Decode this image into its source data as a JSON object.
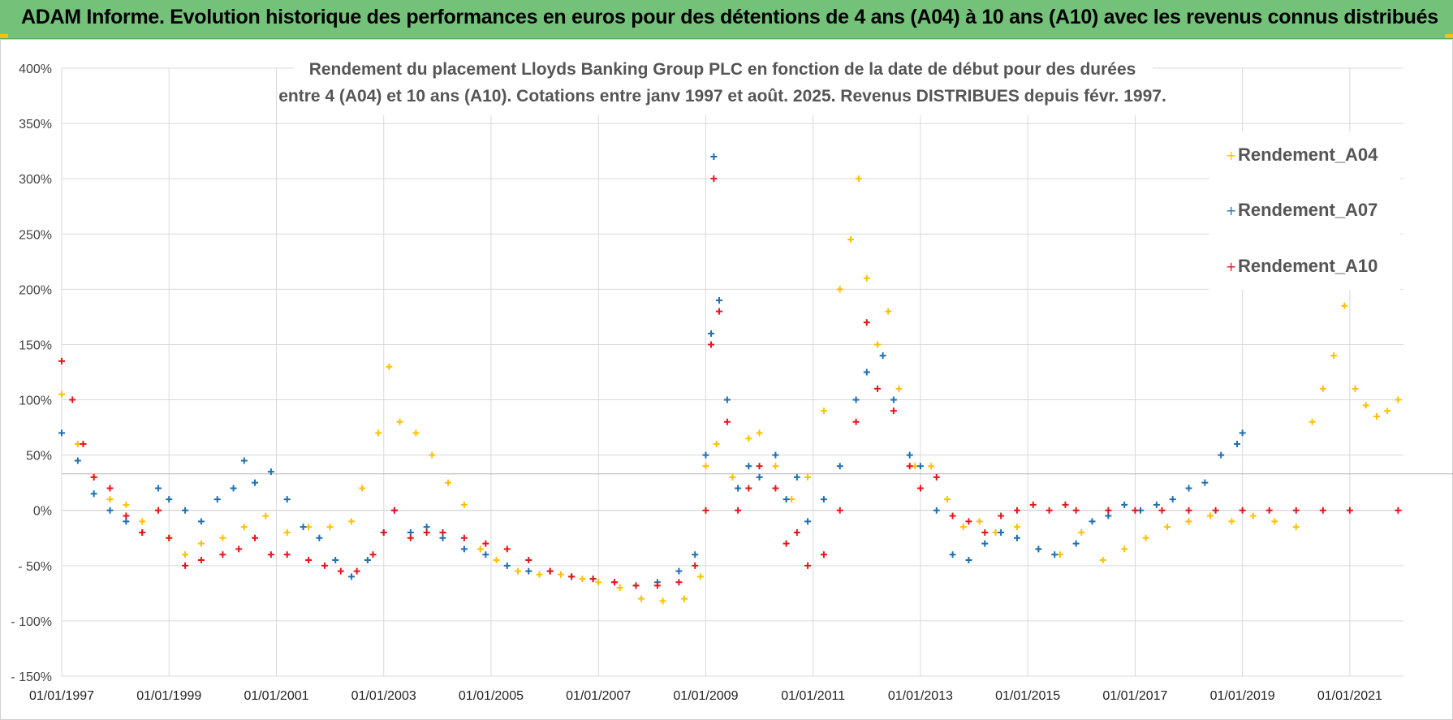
{
  "header": {
    "title": "ADAM Informe. Evolution historique des performances en euros pour des détentions de 4 ans (A04) à 10 ans (A10) avec les revenus connus distribués"
  },
  "colors": {
    "banner": "#74c27a",
    "A04": "#ffc000",
    "A07": "#1f6fb2",
    "A10": "#e8141b",
    "grid": "#d9d9d9"
  },
  "chart_data": {
    "type": "scatter",
    "title_lines": [
      "Rendement du placement Lloyds Banking Group PLC en fonction de la date de début pour des durées",
      "entre 4 (A04) et 10 ans (A10). Cotations entre janv 1997 et août. 2025. Revenus DISTRIBUES depuis févr. 1997."
    ],
    "xlabel": "",
    "ylabel": "",
    "x_range": [
      "1997-01-01",
      "2022-01-01"
    ],
    "ylim": [
      -150,
      400
    ],
    "y_ticks": [
      400,
      350,
      300,
      250,
      200,
      150,
      100,
      50,
      0,
      -50,
      -100,
      -150
    ],
    "y_tick_labels": [
      "400%",
      "350%",
      "300%",
      "250%",
      "200%",
      "150%",
      "100%",
      "50%",
      "0%",
      "- 50%",
      "- 100%",
      "- 150%"
    ],
    "x_tick_labels": [
      "01/01/1997",
      "01/01/1999",
      "01/01/2001",
      "01/01/2003",
      "01/01/2005",
      "01/01/2007",
      "01/01/2009",
      "01/01/2011",
      "01/01/2013",
      "01/01/2015",
      "01/01/2017",
      "01/01/2019",
      "01/01/2021"
    ],
    "x_tick_years": [
      1997,
      1999,
      2001,
      2003,
      2005,
      2007,
      2009,
      2011,
      2013,
      2015,
      2017,
      2019,
      2021
    ],
    "legend_position": "top-right",
    "grid": true,
    "marker": "+",
    "series": [
      {
        "name": "Rendement_A04",
        "color": "#ffc000",
        "points": [
          [
            1997.0,
            105
          ],
          [
            1997.3,
            60
          ],
          [
            1997.6,
            30
          ],
          [
            1997.9,
            10
          ],
          [
            1998.2,
            5
          ],
          [
            1998.5,
            -10
          ],
          [
            1998.8,
            0
          ],
          [
            1999.0,
            -25
          ],
          [
            1999.3,
            -40
          ],
          [
            1999.6,
            -30
          ],
          [
            2000.0,
            -25
          ],
          [
            2000.4,
            -15
          ],
          [
            2000.8,
            -5
          ],
          [
            2001.2,
            -20
          ],
          [
            2001.6,
            -15
          ],
          [
            2002.0,
            -15
          ],
          [
            2002.4,
            -10
          ],
          [
            2002.6,
            20
          ],
          [
            2002.9,
            70
          ],
          [
            2003.1,
            130
          ],
          [
            2003.3,
            80
          ],
          [
            2003.6,
            70
          ],
          [
            2003.9,
            50
          ],
          [
            2004.2,
            25
          ],
          [
            2004.5,
            5
          ],
          [
            2004.8,
            -35
          ],
          [
            2005.1,
            -45
          ],
          [
            2005.5,
            -55
          ],
          [
            2005.9,
            -58
          ],
          [
            2006.3,
            -58
          ],
          [
            2006.7,
            -62
          ],
          [
            2007.0,
            -65
          ],
          [
            2007.4,
            -70
          ],
          [
            2007.8,
            -80
          ],
          [
            2008.2,
            -82
          ],
          [
            2008.6,
            -80
          ],
          [
            2008.9,
            -60
          ],
          [
            2009.0,
            40
          ],
          [
            2009.2,
            60
          ],
          [
            2009.5,
            30
          ],
          [
            2009.8,
            65
          ],
          [
            2010.0,
            70
          ],
          [
            2010.3,
            40
          ],
          [
            2010.6,
            10
          ],
          [
            2010.9,
            30
          ],
          [
            2011.2,
            90
          ],
          [
            2011.5,
            200
          ],
          [
            2011.7,
            245
          ],
          [
            2011.85,
            300
          ],
          [
            2012.0,
            210
          ],
          [
            2012.2,
            150
          ],
          [
            2012.4,
            180
          ],
          [
            2012.6,
            110
          ],
          [
            2012.9,
            40
          ],
          [
            2013.2,
            40
          ],
          [
            2013.5,
            10
          ],
          [
            2013.8,
            -15
          ],
          [
            2014.1,
            -10
          ],
          [
            2014.4,
            -20
          ],
          [
            2014.8,
            -15
          ],
          [
            2015.2,
            -35
          ],
          [
            2015.6,
            -40
          ],
          [
            2016.0,
            -20
          ],
          [
            2016.4,
            -45
          ],
          [
            2016.8,
            -35
          ],
          [
            2017.2,
            -25
          ],
          [
            2017.6,
            -15
          ],
          [
            2018.0,
            -10
          ],
          [
            2018.4,
            -5
          ],
          [
            2018.8,
            -10
          ],
          [
            2019.2,
            -5
          ],
          [
            2019.6,
            -10
          ],
          [
            2020.0,
            -15
          ],
          [
            2020.3,
            80
          ],
          [
            2020.5,
            110
          ],
          [
            2020.7,
            140
          ],
          [
            2020.9,
            185
          ],
          [
            2021.1,
            110
          ],
          [
            2021.3,
            95
          ],
          [
            2021.5,
            85
          ],
          [
            2021.7,
            90
          ],
          [
            2021.9,
            100
          ]
        ]
      },
      {
        "name": "Rendement_A07",
        "color": "#1f6fb2",
        "points": [
          [
            1997.0,
            70
          ],
          [
            1997.3,
            45
          ],
          [
            1997.6,
            15
          ],
          [
            1997.9,
            0
          ],
          [
            1998.2,
            -10
          ],
          [
            1998.5,
            -20
          ],
          [
            1998.8,
            20
          ],
          [
            1999.0,
            10
          ],
          [
            1999.3,
            0
          ],
          [
            1999.6,
            -10
          ],
          [
            1999.9,
            10
          ],
          [
            2000.2,
            20
          ],
          [
            2000.4,
            45
          ],
          [
            2000.6,
            25
          ],
          [
            2000.9,
            35
          ],
          [
            2001.2,
            10
          ],
          [
            2001.5,
            -15
          ],
          [
            2001.8,
            -25
          ],
          [
            2002.1,
            -45
          ],
          [
            2002.4,
            -60
          ],
          [
            2002.7,
            -45
          ],
          [
            2003.0,
            -20
          ],
          [
            2003.2,
            0
          ],
          [
            2003.5,
            -20
          ],
          [
            2003.8,
            -15
          ],
          [
            2004.1,
            -25
          ],
          [
            2004.5,
            -35
          ],
          [
            2004.9,
            -40
          ],
          [
            2005.3,
            -50
          ],
          [
            2005.7,
            -55
          ],
          [
            2006.1,
            -55
          ],
          [
            2006.5,
            -60
          ],
          [
            2006.9,
            -62
          ],
          [
            2007.3,
            -65
          ],
          [
            2007.7,
            -68
          ],
          [
            2008.1,
            -65
          ],
          [
            2008.5,
            -55
          ],
          [
            2008.8,
            -40
          ],
          [
            2009.0,
            50
          ],
          [
            2009.1,
            160
          ],
          [
            2009.15,
            320
          ],
          [
            2009.25,
            190
          ],
          [
            2009.4,
            100
          ],
          [
            2009.6,
            20
          ],
          [
            2009.8,
            40
          ],
          [
            2010.0,
            30
          ],
          [
            2010.3,
            50
          ],
          [
            2010.5,
            10
          ],
          [
            2010.7,
            30
          ],
          [
            2010.9,
            -10
          ],
          [
            2011.2,
            10
          ],
          [
            2011.5,
            40
          ],
          [
            2011.8,
            100
          ],
          [
            2012.0,
            125
          ],
          [
            2012.3,
            140
          ],
          [
            2012.5,
            100
          ],
          [
            2012.8,
            50
          ],
          [
            2013.0,
            40
          ],
          [
            2013.3,
            0
          ],
          [
            2013.6,
            -40
          ],
          [
            2013.9,
            -45
          ],
          [
            2014.2,
            -30
          ],
          [
            2014.5,
            -20
          ],
          [
            2014.8,
            -25
          ],
          [
            2015.2,
            -35
          ],
          [
            2015.5,
            -40
          ],
          [
            2015.9,
            -30
          ],
          [
            2016.2,
            -10
          ],
          [
            2016.5,
            -5
          ],
          [
            2016.8,
            5
          ],
          [
            2017.1,
            0
          ],
          [
            2017.4,
            5
          ],
          [
            2017.7,
            10
          ],
          [
            2018.0,
            20
          ],
          [
            2018.3,
            25
          ],
          [
            2018.6,
            50
          ],
          [
            2018.9,
            60
          ],
          [
            2019.0,
            70
          ]
        ]
      },
      {
        "name": "Rendement_A10",
        "color": "#e8141b",
        "points": [
          [
            1997.0,
            135
          ],
          [
            1997.2,
            100
          ],
          [
            1997.4,
            60
          ],
          [
            1997.6,
            30
          ],
          [
            1997.9,
            20
          ],
          [
            1998.2,
            -5
          ],
          [
            1998.5,
            -20
          ],
          [
            1998.8,
            0
          ],
          [
            1999.0,
            -25
          ],
          [
            1999.3,
            -50
          ],
          [
            1999.6,
            -45
          ],
          [
            2000.0,
            -40
          ],
          [
            2000.3,
            -35
          ],
          [
            2000.6,
            -25
          ],
          [
            2000.9,
            -40
          ],
          [
            2001.2,
            -40
          ],
          [
            2001.6,
            -45
          ],
          [
            2001.9,
            -50
          ],
          [
            2002.2,
            -55
          ],
          [
            2002.5,
            -55
          ],
          [
            2002.8,
            -40
          ],
          [
            2003.0,
            -20
          ],
          [
            2003.2,
            0
          ],
          [
            2003.5,
            -25
          ],
          [
            2003.8,
            -20
          ],
          [
            2004.1,
            -20
          ],
          [
            2004.5,
            -25
          ],
          [
            2004.9,
            -30
          ],
          [
            2005.3,
            -35
          ],
          [
            2005.7,
            -45
          ],
          [
            2006.1,
            -55
          ],
          [
            2006.5,
            -60
          ],
          [
            2006.9,
            -62
          ],
          [
            2007.3,
            -65
          ],
          [
            2007.7,
            -68
          ],
          [
            2008.1,
            -68
          ],
          [
            2008.5,
            -65
          ],
          [
            2008.8,
            -50
          ],
          [
            2009.0,
            0
          ],
          [
            2009.1,
            150
          ],
          [
            2009.15,
            300
          ],
          [
            2009.25,
            180
          ],
          [
            2009.4,
            80
          ],
          [
            2009.6,
            0
          ],
          [
            2009.8,
            20
          ],
          [
            2010.0,
            40
          ],
          [
            2010.3,
            20
          ],
          [
            2010.5,
            -30
          ],
          [
            2010.7,
            -20
          ],
          [
            2010.9,
            -50
          ],
          [
            2011.2,
            -40
          ],
          [
            2011.5,
            0
          ],
          [
            2011.8,
            80
          ],
          [
            2012.0,
            170
          ],
          [
            2012.2,
            110
          ],
          [
            2012.5,
            90
          ],
          [
            2012.8,
            40
          ],
          [
            2013.0,
            20
          ],
          [
            2013.3,
            30
          ],
          [
            2013.6,
            -5
          ],
          [
            2013.9,
            -10
          ],
          [
            2014.2,
            -20
          ],
          [
            2014.5,
            -5
          ],
          [
            2014.8,
            0
          ],
          [
            2015.1,
            5
          ],
          [
            2015.4,
            0
          ],
          [
            2015.7,
            5
          ],
          [
            2015.9,
            0
          ],
          [
            2016.5,
            0
          ],
          [
            2017.0,
            0
          ],
          [
            2017.5,
            0
          ],
          [
            2018.0,
            0
          ],
          [
            2018.5,
            0
          ],
          [
            2019.0,
            0
          ],
          [
            2019.5,
            0
          ],
          [
            2020.0,
            0
          ],
          [
            2020.5,
            0
          ],
          [
            2021.0,
            0
          ],
          [
            2021.9,
            0
          ]
        ]
      }
    ]
  }
}
